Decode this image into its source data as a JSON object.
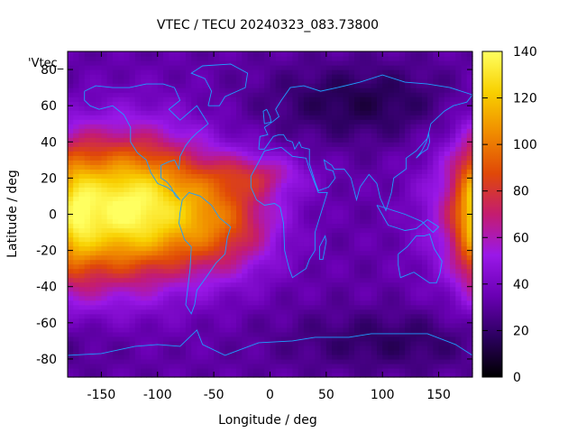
{
  "chart_data": {
    "type": "heatmap",
    "title": "VTEC / TECU 20240323_083.73800",
    "xlabel": "Longitude / deg",
    "ylabel": "Latitude / deg",
    "series_key": "'Vtec_",
    "xlim": [
      -180,
      180
    ],
    "ylim": [
      -90,
      90
    ],
    "x_ticks": [
      -150,
      -100,
      -50,
      0,
      50,
      100,
      150
    ],
    "y_ticks": [
      -80,
      -60,
      -40,
      -20,
      0,
      20,
      40,
      60,
      80
    ],
    "colorbar": {
      "range": [
        0,
        140
      ],
      "ticks": [
        0,
        20,
        40,
        60,
        80,
        100,
        120,
        140
      ],
      "palette": [
        "#000000",
        "#2c0060",
        "#6a00b4",
        "#9a18e8",
        "#c41c70",
        "#e04808",
        "#f08c00",
        "#f8d000",
        "#ffff60"
      ]
    },
    "grid_resolution": {
      "dlon": 5,
      "dlat": 2.5
    },
    "field_features": [
      {
        "lon": -110,
        "lat": 5,
        "amplitude": 75,
        "sigma_lon": 48,
        "sigma_lat": 26
      },
      {
        "lon": -150,
        "lat": 0,
        "amplitude": 45,
        "sigma_lon": 40,
        "sigma_lat": 30
      },
      {
        "lon": -40,
        "lat": -5,
        "amplitude": 40,
        "sigma_lon": 35,
        "sigma_lat": 20
      },
      {
        "lon": -10,
        "lat": 22,
        "amplitude": 25,
        "sigma_lon": 30,
        "sigma_lat": 8
      },
      {
        "lon": 185,
        "lat": 0,
        "amplitude": 40,
        "sigma_lon": 14,
        "sigma_lat": 28
      }
    ],
    "field_background": 32,
    "field_lows": [
      {
        "lon": 80,
        "lat": 62,
        "amplitude": -18,
        "sigma_lon": 60,
        "sigma_lat": 15
      },
      {
        "lon": 110,
        "lat": -70,
        "amplitude": -14,
        "sigma_lon": 70,
        "sigma_lat": 12
      }
    ],
    "coastline_color": "#1ea0ff"
  }
}
